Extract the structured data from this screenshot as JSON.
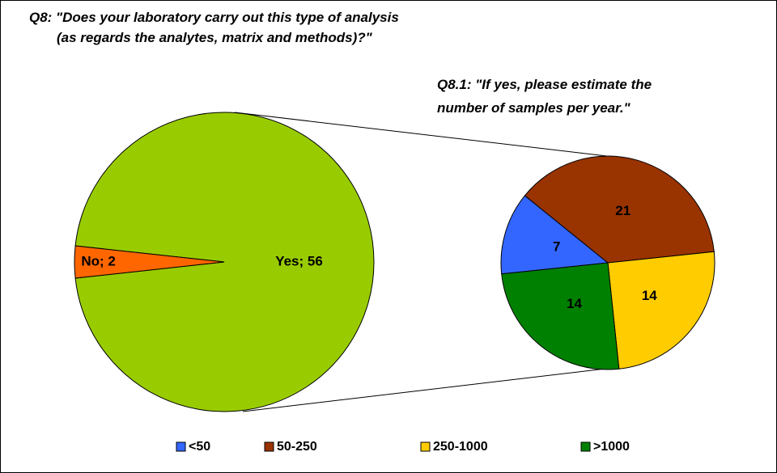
{
  "chart_data": [
    {
      "type": "pie",
      "title": [
        "Q8: \"Does your laboratory carry out this type of analysis",
        "(as regards the analytes, matrix and methods)?\""
      ],
      "categories": [
        "Yes",
        "No"
      ],
      "values": [
        56,
        2
      ],
      "value_labels": [
        "Yes; 56",
        "No; 2"
      ],
      "colors": [
        "#99cc00",
        "#ff6600"
      ]
    },
    {
      "type": "pie",
      "title": [
        "Q8.1: \"If yes, please estimate the",
        "number of samples per year.\""
      ],
      "categories": [
        "<50",
        "50-250",
        "250-1000",
        ">1000"
      ],
      "values": [
        7,
        21,
        14,
        14
      ],
      "colors": [
        "#3366ff",
        "#993300",
        "#ffcc00",
        "#008000"
      ],
      "legend": "bottom"
    }
  ]
}
